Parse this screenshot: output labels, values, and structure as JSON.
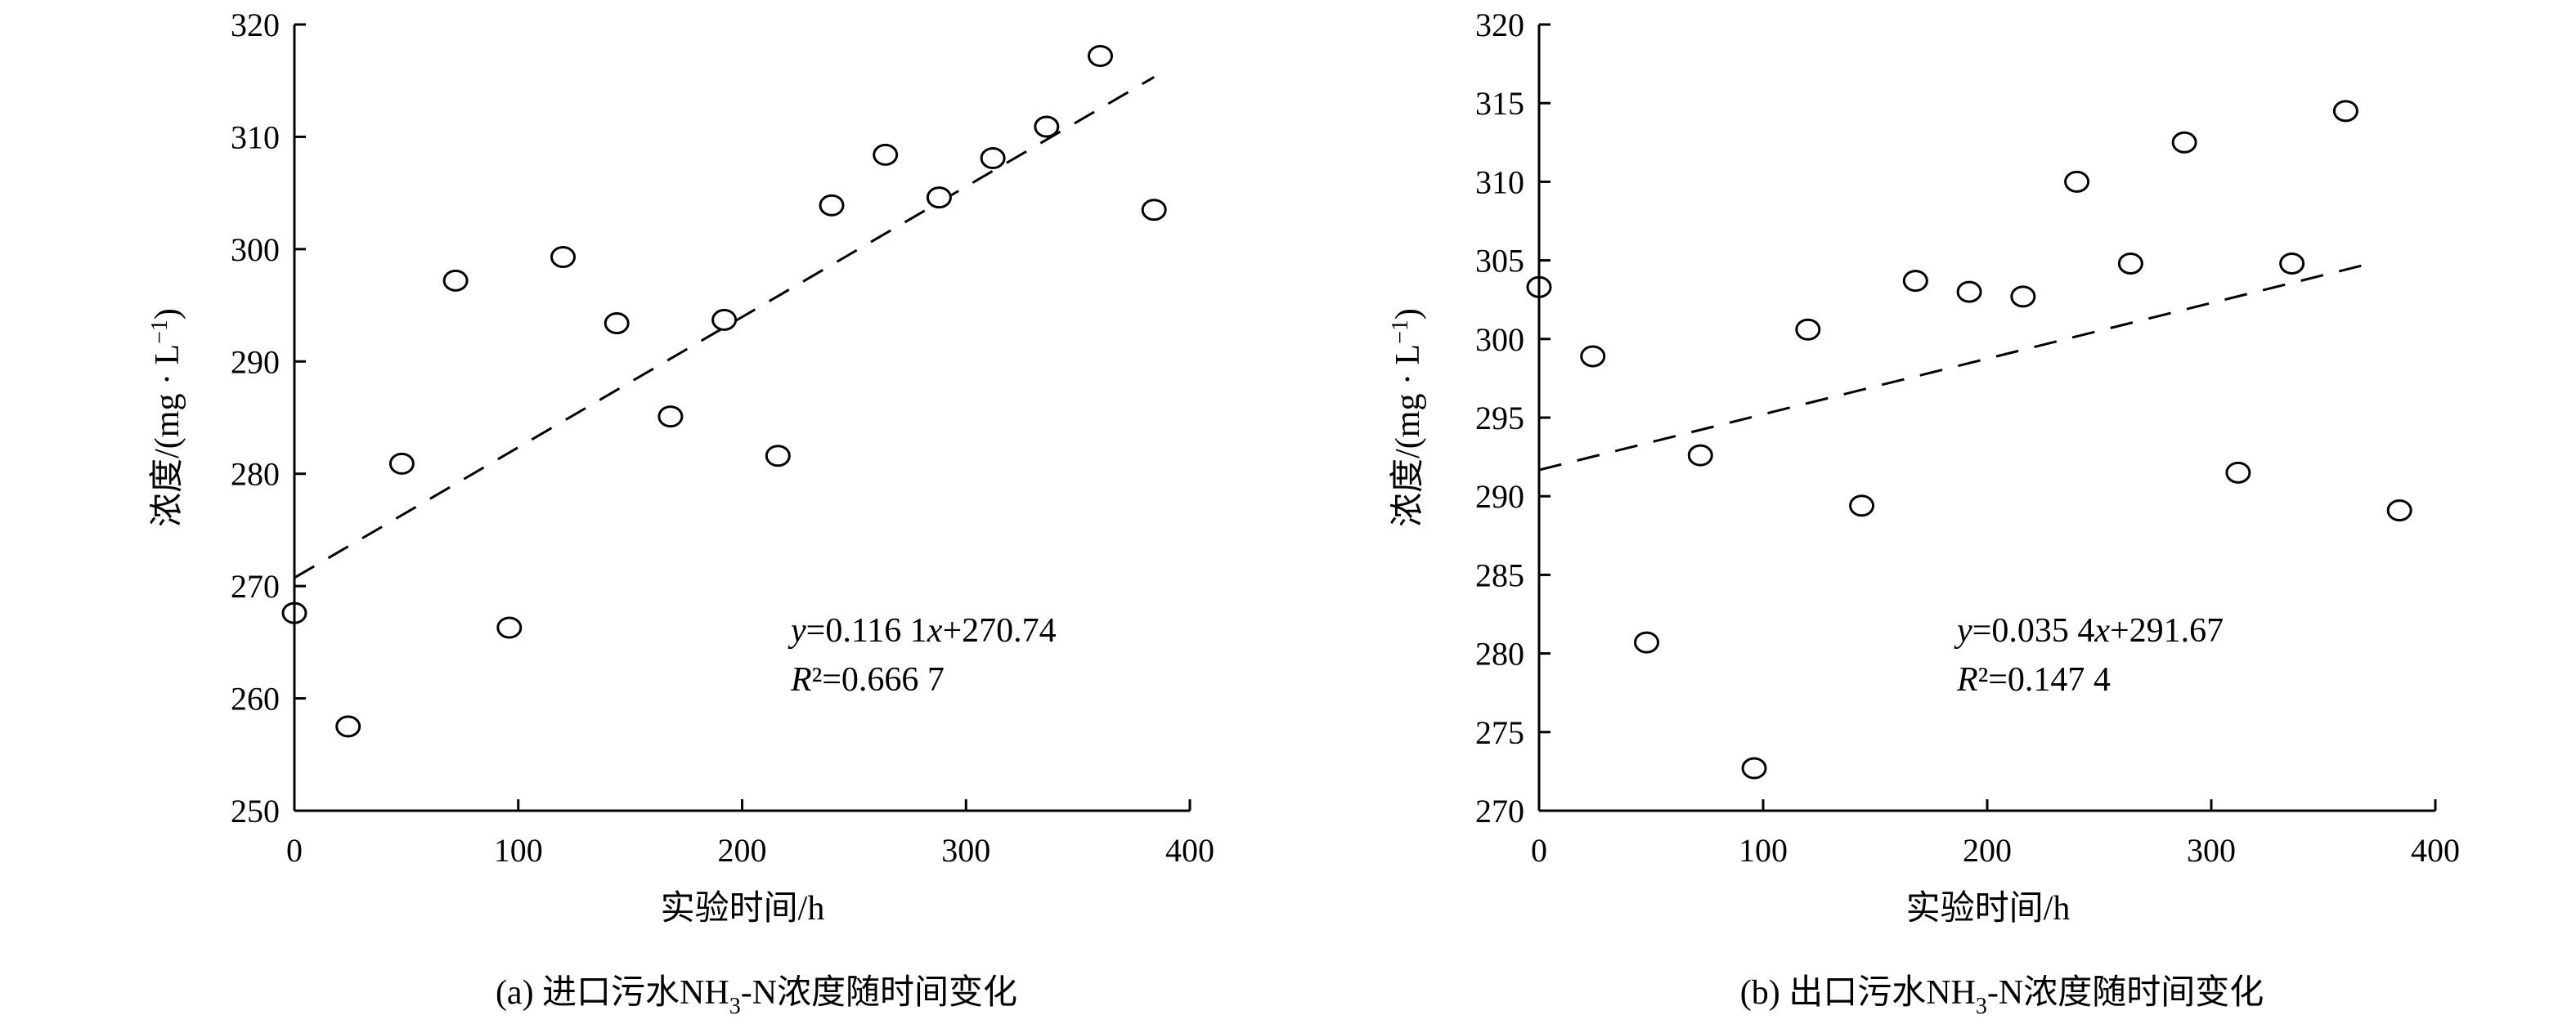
{
  "figure": {
    "captions": [
      {
        "prefix": "(a) 进口污水NH",
        "sub": "3",
        "suffix": "-N浓度随时间变化"
      },
      {
        "prefix": "(b) 出口污水NH",
        "sub": "3",
        "suffix": "-N浓度随时间变化"
      }
    ]
  },
  "chart_data": [
    {
      "type": "scatter",
      "xlabel": "实验时间/h",
      "ylabel": {
        "text": "浓度/(mg · L",
        "sup": "−1",
        "close": ")"
      },
      "xlim": [
        0,
        400
      ],
      "ylim": [
        250,
        320
      ],
      "xticks": [
        0,
        100,
        200,
        300,
        400
      ],
      "yticks": [
        250,
        260,
        270,
        280,
        290,
        300,
        310,
        320
      ],
      "grid": false,
      "points": [
        [
          0,
          267.6
        ],
        [
          24,
          257.5
        ],
        [
          48,
          280.9
        ],
        [
          72,
          297.2
        ],
        [
          96,
          266.3
        ],
        [
          120,
          299.3
        ],
        [
          144,
          293.4
        ],
        [
          168,
          285.1
        ],
        [
          192,
          293.7
        ],
        [
          216,
          281.6
        ],
        [
          240,
          303.9
        ],
        [
          264,
          308.4
        ],
        [
          288,
          304.6
        ],
        [
          312,
          308.1
        ],
        [
          336,
          310.9
        ],
        [
          360,
          317.2
        ],
        [
          384,
          303.5
        ]
      ],
      "trendline": {
        "slope": 0.1161,
        "intercept": 270.74,
        "x_range": [
          0,
          384
        ],
        "style": "dashed"
      },
      "equation": {
        "y": "y",
        "eq": "=0.116 1",
        "x": "x",
        "rest": "+270.74"
      },
      "r2": {
        "r": "R",
        "rest": "²=0.666 7"
      }
    },
    {
      "type": "scatter",
      "xlabel": "实验时间/h",
      "ylabel": {
        "text": "浓度/(mg · L",
        "sup": "−1",
        "close": ")"
      },
      "xlim": [
        0,
        400
      ],
      "ylim": [
        270,
        320
      ],
      "xticks": [
        0,
        100,
        200,
        300,
        400
      ],
      "yticks": [
        270,
        275,
        280,
        285,
        290,
        295,
        300,
        305,
        310,
        315,
        320
      ],
      "grid": false,
      "points": [
        [
          0,
          303.3
        ],
        [
          24,
          298.9
        ],
        [
          48,
          280.7
        ],
        [
          72,
          292.6
        ],
        [
          96,
          272.7
        ],
        [
          120,
          300.6
        ],
        [
          144,
          289.4
        ],
        [
          168,
          303.7
        ],
        [
          192,
          303.0
        ],
        [
          216,
          302.7
        ],
        [
          240,
          310.0
        ],
        [
          264,
          304.8
        ],
        [
          288,
          312.5
        ],
        [
          312,
          291.5
        ],
        [
          336,
          304.8
        ],
        [
          360,
          314.5
        ],
        [
          384,
          289.1
        ]
      ],
      "trendline": {
        "slope": 0.0354,
        "intercept": 291.67,
        "x_range": [
          0,
          372
        ],
        "style": "dashed"
      },
      "equation": {
        "y": "y",
        "eq": "=0.035 4",
        "x": "x",
        "rest": "+291.67"
      },
      "r2": {
        "r": "R",
        "rest": "²=0.147 4"
      }
    }
  ]
}
